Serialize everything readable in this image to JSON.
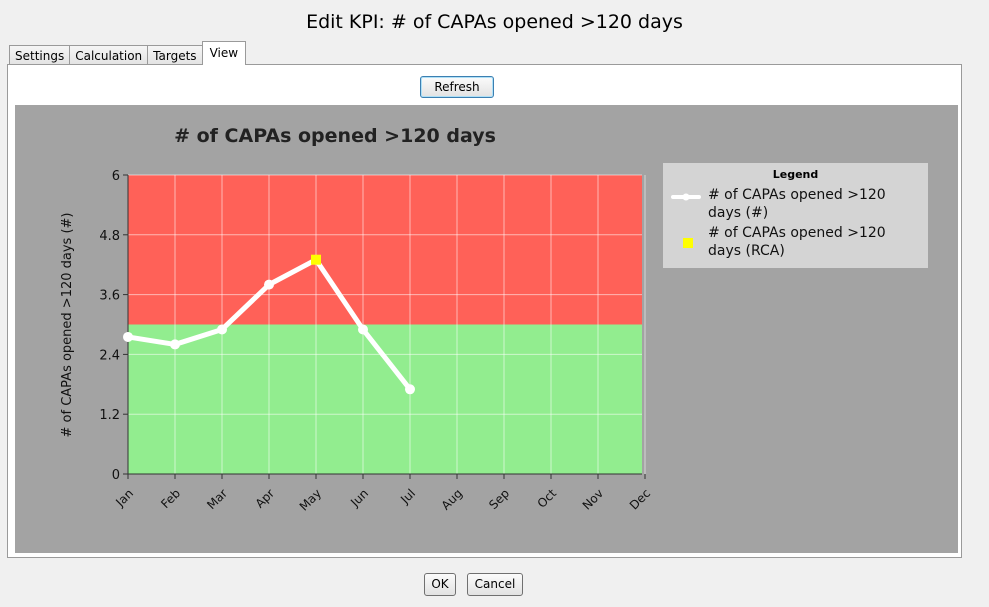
{
  "window": {
    "title": "Edit KPI: # of CAPAs opened >120 days"
  },
  "tabs": [
    {
      "label": "Settings"
    },
    {
      "label": "Calculation"
    },
    {
      "label": "Targets"
    },
    {
      "label": "View",
      "active": true
    }
  ],
  "toolbar": {
    "refresh_label": "Refresh"
  },
  "footer": {
    "ok_label": "OK",
    "cancel_label": "Cancel"
  },
  "colors": {
    "chart_background": "#a3a3a3",
    "above_target_band": "#ff6158",
    "below_target_band": "#92ed8f",
    "line_color": "#ffffff",
    "rca_marker": "#ffff00",
    "legend_background": "#d4d4d4"
  },
  "chart_data": {
    "type": "line",
    "title": "# of CAPAs opened >120 days",
    "xlabel": "",
    "ylabel": "# of CAPAs opened >120 days (#)",
    "categories": [
      "Jan",
      "Feb",
      "Mar",
      "Apr",
      "May",
      "Jun",
      "Jul",
      "Aug",
      "Sep",
      "Oct",
      "Nov",
      "Dec"
    ],
    "ylim": [
      0,
      6
    ],
    "yticks": [
      0,
      1.2,
      2.4,
      3.6,
      4.8,
      6
    ],
    "ytick_labels": [
      "0",
      "1.2",
      "2.4",
      "3.6",
      "4.8",
      "6"
    ],
    "target_threshold": 3.0,
    "grid": true,
    "legend_title": "Legend",
    "legend_position": "right",
    "series": [
      {
        "name": "# of CAPAs opened >120 days (#)",
        "values": [
          2.75,
          2.6,
          2.9,
          3.8,
          4.3,
          2.9,
          1.7,
          null,
          null,
          null,
          null,
          null
        ]
      },
      {
        "name": "# of CAPAs opened >120 days (RCA)",
        "values": [
          null,
          null,
          null,
          null,
          4.3,
          null,
          null,
          null,
          null,
          null,
          null,
          null
        ]
      }
    ]
  }
}
